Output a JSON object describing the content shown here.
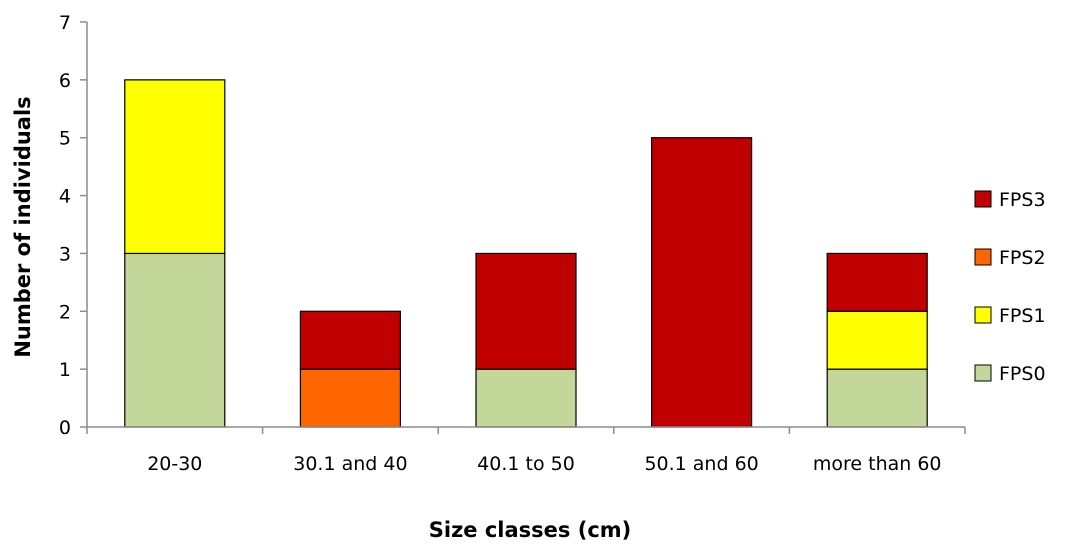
{
  "chart_data": {
    "type": "bar",
    "stacked": true,
    "title": "",
    "xlabel": "Size classes (cm)",
    "ylabel": "Number of individuals",
    "categories": [
      "20-30",
      "30.1 and 40",
      "40.1 to 50",
      "50.1 and 60",
      "more than 60"
    ],
    "ylim": [
      0,
      7
    ],
    "yticks": [
      0,
      1,
      2,
      3,
      4,
      5,
      6,
      7
    ],
    "grid": false,
    "legend_position": "right",
    "series": [
      {
        "name": "FPS0",
        "color": "#c4d79b",
        "values": [
          3,
          0,
          1,
          0,
          1
        ]
      },
      {
        "name": "FPS1",
        "color": "#ffff00",
        "values": [
          3,
          0,
          0,
          0,
          1
        ]
      },
      {
        "name": "FPS2",
        "color": "#ff6600",
        "values": [
          0,
          1,
          0,
          0,
          0
        ]
      },
      {
        "name": "FPS3",
        "color": "#c00000",
        "values": [
          0,
          1,
          2,
          5,
          1
        ]
      }
    ],
    "legend_order": [
      "FPS3",
      "FPS2",
      "FPS1",
      "FPS0"
    ]
  }
}
